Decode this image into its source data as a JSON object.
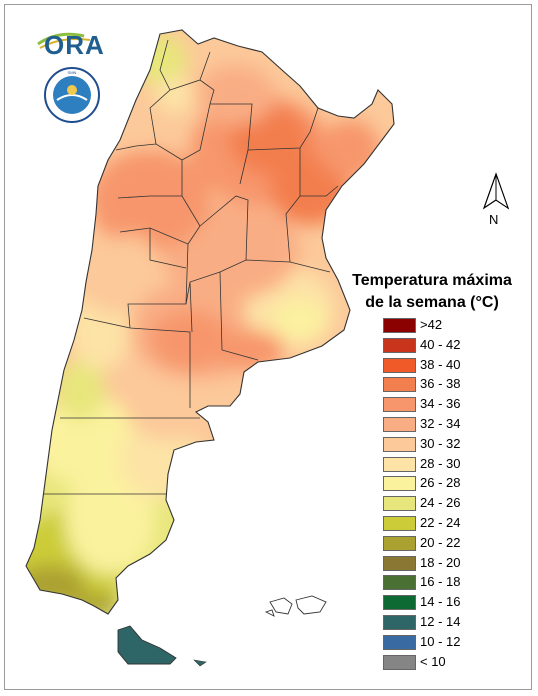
{
  "logo": {
    "text": "ORA",
    "seal_text": "SERVICIO METEOROLÓGICO NACIONAL · ARGENTINA"
  },
  "north_arrow": {
    "label": "N"
  },
  "legend": {
    "title_line1": "Temperatura máxima",
    "title_line2": "de la semana (°C)",
    "items": [
      {
        "label": ">42",
        "color": "#8b0000"
      },
      {
        "label": "40 - 42",
        "color": "#c9341d"
      },
      {
        "label": "38 - 40",
        "color": "#f05a28"
      },
      {
        "label": "36 - 38",
        "color": "#f37e4e"
      },
      {
        "label": "34 - 36",
        "color": "#f7966c"
      },
      {
        "label": "32 - 34",
        "color": "#f9ad84"
      },
      {
        "label": "30 - 32",
        "color": "#fcc99a"
      },
      {
        "label": "28 - 30",
        "color": "#fde3a6"
      },
      {
        "label": "26 - 28",
        "color": "#fbf29e"
      },
      {
        "label": "24 - 26",
        "color": "#e7e67c"
      },
      {
        "label": "22 - 24",
        "color": "#cccc39"
      },
      {
        "label": "20 - 22",
        "color": "#aba131"
      },
      {
        "label": "18 - 20",
        "color": "#8b7734"
      },
      {
        "label": "16 - 18",
        "color": "#4a7034"
      },
      {
        "label": "14 - 16",
        "color": "#0d6a33"
      },
      {
        "label": "12 - 14",
        "color": "#2e6566"
      },
      {
        "label": "10 - 12",
        "color": "#3a6aa2"
      },
      {
        "label": "< 10",
        "color": "#858585"
      }
    ]
  }
}
